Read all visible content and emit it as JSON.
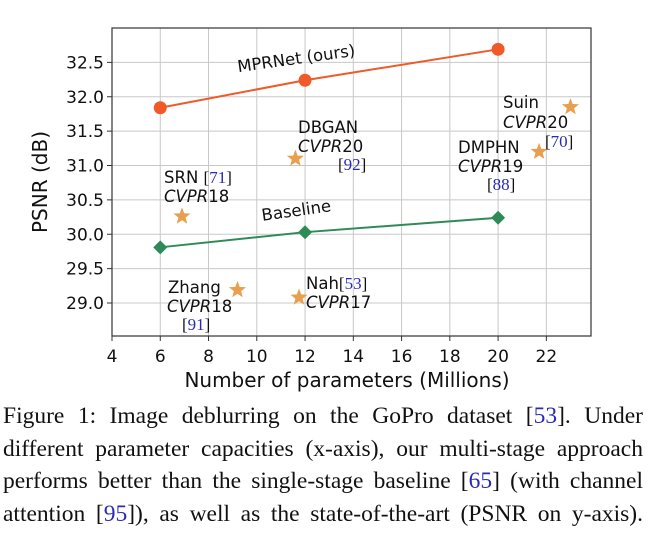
{
  "chart_data": {
    "type": "line",
    "xlabel": "Number of parameters (Millions)",
    "ylabel": "PSNR (dB)",
    "xlim": [
      4,
      23.85
    ],
    "ylim": [
      28.52,
      33.0
    ],
    "xticks": [
      4,
      6,
      8,
      10,
      12,
      14,
      16,
      18,
      20,
      22
    ],
    "yticks": [
      "29.0",
      "29.5",
      "30.0",
      "30.5",
      "31.0",
      "31.5",
      "32.0",
      "32.5"
    ],
    "grid": true,
    "series": [
      {
        "name": "MPRNet (ours)",
        "color": "#f05a28",
        "marker": "circle",
        "x": [
          6,
          12,
          20
        ],
        "y": [
          31.84,
          32.24,
          32.69
        ]
      },
      {
        "name": "Baseline",
        "color": "#2e8b57",
        "marker": "diamond",
        "x": [
          6,
          12,
          20
        ],
        "y": [
          29.81,
          30.03,
          30.24
        ]
      }
    ],
    "points": {
      "color": "#e8a050",
      "marker": "star",
      "items": [
        {
          "x": 6.9,
          "y": 30.26,
          "label": [
            [
              {
                "t": "SRN "
              },
              {
                "t": "71",
                "ref": true
              }
            ],
            [
              {
                "t": "CVPR",
                "i": true
              },
              {
                "t": "18"
              }
            ]
          ]
        },
        {
          "x": 11.6,
          "y": 31.1,
          "label": [
            [
              {
                "t": "DBGAN"
              }
            ],
            [
              {
                "t": "CVPR",
                "i": true
              },
              {
                "t": "20"
              }
            ],
            [
              {
                "t": "92",
                "ref": true
              }
            ]
          ]
        },
        {
          "x": 21.7,
          "y": 31.2,
          "label": [
            [
              {
                "t": "DMPHN"
              }
            ],
            [
              {
                "t": "CVPR",
                "i": true
              },
              {
                "t": "19"
              }
            ],
            [
              {
                "t": "88",
                "ref": true
              }
            ]
          ]
        },
        {
          "x": 23.0,
          "y": 31.85,
          "label": [
            [
              {
                "t": "Suin"
              }
            ],
            [
              {
                "t": "CVPR",
                "i": true
              },
              {
                "t": "20"
              }
            ],
            [
              {
                "t": "70",
                "ref": true
              }
            ]
          ]
        },
        {
          "x": 9.2,
          "y": 29.19,
          "label": [
            [
              {
                "t": "Zhang"
              }
            ],
            [
              {
                "t": "CVPR",
                "i": true
              },
              {
                "t": "18"
              }
            ],
            [
              {
                "t": "91",
                "ref": true
              }
            ]
          ]
        },
        {
          "x": 11.75,
          "y": 29.08,
          "label": [
            [
              {
                "t": "Nah"
              },
              {
                "t": "53",
                "ref": true
              }
            ],
            [
              {
                "t": "CVPR",
                "i": true
              },
              {
                "t": "17"
              }
            ]
          ]
        }
      ]
    },
    "ref_color": "#2a2ab8"
  },
  "caption": {
    "lines": [
      [
        {
          "t": "Figure 1:  Image deblurring on the GoPro dataset ["
        },
        {
          "t": "53",
          "ref": true
        },
        {
          "t": "].  Under"
        }
      ],
      [
        {
          "t": "different parameter capacities (x-axis), our multi-stage approach"
        }
      ],
      [
        {
          "t": "performs better than the single-stage baseline ["
        },
        {
          "t": "65",
          "ref": true
        },
        {
          "t": "] (with channel"
        }
      ],
      [
        {
          "t": "attention ["
        },
        {
          "t": "95",
          "ref": true
        },
        {
          "t": "]), as well as the state-of-the-art (PSNR on y-axis)."
        }
      ]
    ]
  }
}
